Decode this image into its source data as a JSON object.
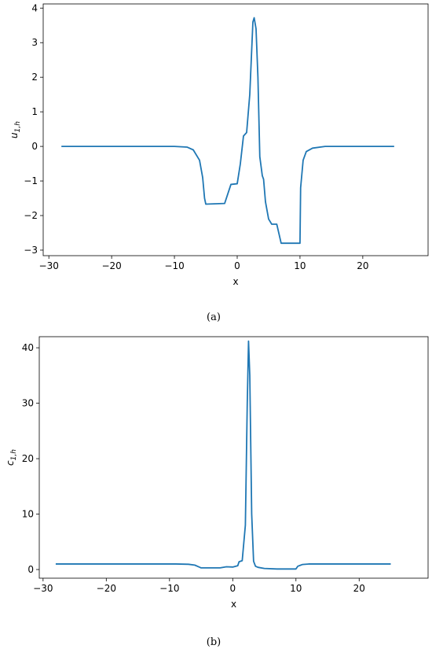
{
  "chart_data": [
    {
      "type": "line",
      "caption": "(a)",
      "xlabel": "x",
      "ylabel": {
        "base": "u",
        "sub": "1,h"
      },
      "xlim": [
        -30.9,
        30.4
      ],
      "xticks": [
        {
          "value": -30,
          "label": "−30"
        },
        {
          "value": -20,
          "label": "−20"
        },
        {
          "value": -10,
          "label": "−10"
        },
        0,
        10,
        20
      ],
      "ylim": [
        -3.16,
        4.12
      ],
      "yticks": [
        {
          "value": -3,
          "label": "−3"
        },
        {
          "value": -2,
          "label": "−2"
        },
        {
          "value": -1,
          "label": "−1"
        },
        0,
        1,
        2,
        3,
        4
      ],
      "series": [
        {
          "color": "#1f77b4",
          "x": [
            -28,
            -10,
            -8,
            -7,
            -6,
            -5.5,
            -5.2,
            -5,
            -2,
            -1,
            0,
            0.5,
            1,
            1.5,
            2,
            2.5,
            2.7,
            3,
            3.3,
            3.6,
            4,
            4.2,
            4.5,
            5,
            5.5,
            6.3,
            7,
            10,
            10.1,
            10.5,
            11,
            12,
            14,
            25
          ],
          "values": [
            0,
            0,
            -0.02,
            -0.1,
            -0.4,
            -0.9,
            -1.5,
            -1.67,
            -1.65,
            -1.1,
            -1.08,
            -0.5,
            0.3,
            0.4,
            1.5,
            3.6,
            3.72,
            3.4,
            2.0,
            -0.3,
            -0.85,
            -0.95,
            -1.6,
            -2.1,
            -2.25,
            -2.25,
            -2.8,
            -2.8,
            -1.2,
            -0.4,
            -0.15,
            -0.05,
            0,
            0
          ]
        }
      ]
    },
    {
      "type": "line",
      "caption": "(b)",
      "xlabel": "x",
      "ylabel": {
        "base": "c",
        "sub": "1,h"
      },
      "xlim": [
        -30.6,
        30.9
      ],
      "xticks": [
        {
          "value": -30,
          "label": "−30"
        },
        {
          "value": -20,
          "label": "−20"
        },
        {
          "value": -10,
          "label": "−10"
        },
        0,
        10,
        20
      ],
      "ylim": [
        -1.56,
        42
      ],
      "yticks": [
        0,
        10,
        20,
        30,
        40
      ],
      "series": [
        {
          "color": "#1f77b4",
          "x": [
            -28,
            -9,
            -7,
            -6,
            -5,
            -2,
            -1,
            0,
            0.8,
            1,
            1.5,
            2,
            2.3,
            2.5,
            2.7,
            3,
            3.3,
            3.6,
            4,
            5,
            7,
            10,
            10.3,
            11,
            12,
            25
          ],
          "values": [
            1,
            1,
            0.95,
            0.8,
            0.3,
            0.3,
            0.5,
            0.45,
            0.7,
            1.4,
            1.6,
            8,
            30,
            41.2,
            35,
            10,
            1.5,
            0.6,
            0.4,
            0.2,
            0.1,
            0.1,
            0.6,
            0.9,
            1,
            1
          ]
        }
      ]
    }
  ]
}
